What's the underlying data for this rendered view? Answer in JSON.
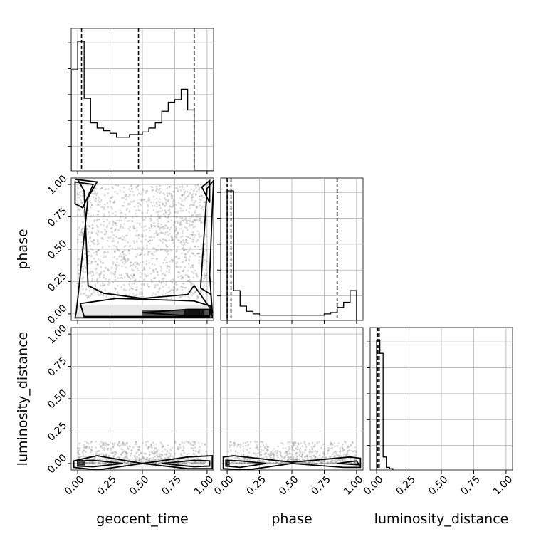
{
  "chart_data": {
    "type": "corner",
    "parameters": [
      "geocent_time",
      "phase",
      "luminosity_distance"
    ],
    "axis_labels": {
      "x": [
        "geocent_time",
        "phase",
        "luminosity_distance"
      ],
      "y": [
        "phase",
        "luminosity_distance"
      ]
    },
    "tick_labels": [
      "0.00",
      "0.25",
      "0.50",
      "0.75",
      "1.00"
    ],
    "ticks": [
      0,
      0.25,
      0.5,
      0.75,
      1.0
    ],
    "axis_range": [
      -0.05,
      1.05
    ],
    "grid": true,
    "histograms": {
      "geocent_time": {
        "bin_edges": [
          -0.05,
          0.0,
          0.05,
          0.1,
          0.15,
          0.2,
          0.25,
          0.3,
          0.35,
          0.4,
          0.45,
          0.5,
          0.55,
          0.6,
          0.65,
          0.7,
          0.75,
          0.8,
          0.85,
          0.9,
          0.95,
          1.0,
          1.05
        ],
        "counts": [
          0.78,
          1.0,
          0.56,
          0.37,
          0.33,
          0.31,
          0.29,
          0.26,
          0.26,
          0.28,
          0.28,
          0.3,
          0.33,
          0.37,
          0.46,
          0.53,
          0.55,
          0.63,
          0.47,
          0,
          0,
          0
        ],
        "quantiles": [
          0.03,
          0.47,
          0.9
        ]
      },
      "phase": {
        "bin_edges": [
          -0.05,
          0.0,
          0.05,
          0.1,
          0.15,
          0.2,
          0.25,
          0.3,
          0.35,
          0.4,
          0.45,
          0.5,
          0.55,
          0.6,
          0.65,
          0.7,
          0.75,
          0.8,
          0.85,
          0.9,
          0.95,
          1.0,
          1.05
        ],
        "counts": [
          0,
          1.0,
          0.23,
          0.11,
          0.07,
          0.05,
          0.04,
          0.04,
          0.04,
          0.04,
          0.04,
          0.04,
          0.04,
          0.04,
          0.04,
          0.04,
          0.05,
          0.06,
          0.1,
          0.14,
          0.23,
          0
        ],
        "quantiles": [
          0.0,
          0.03,
          0.85
        ]
      },
      "luminosity_distance": {
        "bin_edges": [
          0.0,
          0.025,
          0.05,
          0.075,
          0.1,
          0.125
        ],
        "counts": [
          1.0,
          0.9,
          0.1,
          0.02,
          0.01
        ],
        "quantiles": [
          0.005,
          0.01,
          0.02
        ]
      }
    },
    "scatter_panels": [
      {
        "x": "geocent_time",
        "y": "phase",
        "point_region": {
          "x": [
            0.0,
            1.0
          ],
          "y": [
            0.0,
            1.0
          ]
        }
      },
      {
        "x": "geocent_time",
        "y": "luminosity_distance",
        "point_region": {
          "x": [
            0.0,
            1.0
          ],
          "y": [
            0.0,
            0.17
          ]
        }
      },
      {
        "x": "phase",
        "y": "luminosity_distance",
        "point_region": {
          "x": [
            0.0,
            1.0
          ],
          "y": [
            0.0,
            0.17
          ]
        }
      }
    ]
  }
}
